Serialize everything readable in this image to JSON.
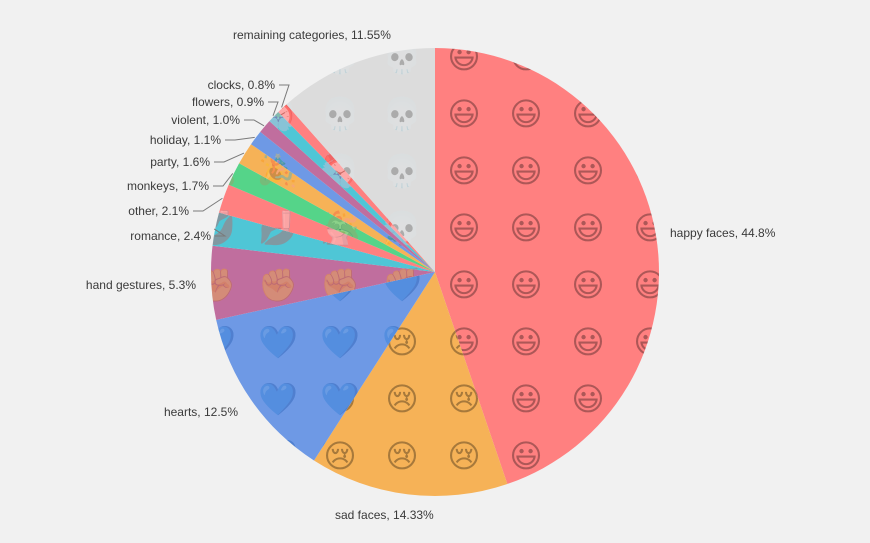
{
  "chart_data": {
    "type": "pie",
    "start_angle_deg": 0,
    "direction": "clockwise",
    "slices": [
      {
        "label": "happy faces",
        "value": 44.8,
        "display": "happy faces, 44.8%",
        "color": "#ff8080",
        "emoji": "😃"
      },
      {
        "label": "sad faces",
        "value": 14.33,
        "display": "sad faces, 14.33%",
        "color": "#f6b257",
        "emoji": "😢"
      },
      {
        "label": "hearts",
        "value": 12.5,
        "display": "hearts, 12.5%",
        "color": "#6e99e5",
        "emoji": "💙"
      },
      {
        "label": "hand gestures",
        "value": 5.3,
        "display": "hand gestures, 5.3%",
        "color": "#c06e9e",
        "emoji": "✊"
      },
      {
        "label": "romance",
        "value": 2.4,
        "display": "romance, 2.4%",
        "color": "#4fc6d6",
        "emoji": "💋"
      },
      {
        "label": "other",
        "value": 2.1,
        "display": "other, 2.1%",
        "color": "#ff8080",
        "emoji": "🚽"
      },
      {
        "label": "monkeys",
        "value": 1.7,
        "display": "monkeys, 1.7%",
        "color": "#55d489",
        "emoji": "🙈"
      },
      {
        "label": "party",
        "value": 1.6,
        "display": "party, 1.6%",
        "color": "#f6b257",
        "emoji": "🎉"
      },
      {
        "label": "holiday",
        "value": 1.1,
        "display": "holiday, 1.1%",
        "color": "#6e99e5",
        "emoji": "🎄"
      },
      {
        "label": "violent",
        "value": 1.0,
        "display": "violent, 1.0%",
        "color": "#c06e9e",
        "emoji": "🔪"
      },
      {
        "label": "flowers",
        "value": 0.9,
        "display": "flowers, 0.9%",
        "color": "#4fc6d6",
        "emoji": "🌸"
      },
      {
        "label": "clocks",
        "value": 0.8,
        "display": "clocks, 0.8%",
        "color": "#ff8080",
        "emoji": "⏰"
      },
      {
        "label": "remaining categories",
        "value": 11.55,
        "display": "remaining categories, 11.55%",
        "color": "#dcdcdc",
        "emoji": "💀"
      }
    ]
  }
}
